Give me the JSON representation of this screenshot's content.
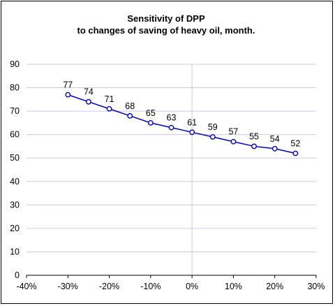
{
  "chart_data": {
    "type": "line",
    "title_line1": "Sensitivity of DPP",
    "title_line2": "to changes of saving of heavy oil, month.",
    "xlim": [
      -40,
      30
    ],
    "ylim": [
      0,
      90
    ],
    "x_ticks": [
      -40,
      -30,
      -20,
      -10,
      0,
      10,
      20,
      30
    ],
    "x_tick_labels": [
      "-40%",
      "-30%",
      "-20%",
      "-10%",
      "0%",
      "10%",
      "20%",
      "30%"
    ],
    "y_ticks": [
      0,
      10,
      20,
      30,
      40,
      50,
      60,
      70,
      80,
      90
    ],
    "y_tick_labels": [
      "0",
      "10",
      "20",
      "30",
      "40",
      "50",
      "60",
      "70",
      "80",
      "90"
    ],
    "grid": true,
    "series": [
      {
        "x": [
          -30,
          -25,
          -20,
          -15,
          -10,
          -5,
          0,
          5,
          10,
          15,
          20,
          25
        ],
        "values": [
          77,
          74,
          71,
          68,
          65,
          63,
          61,
          59,
          57,
          55,
          54,
          52
        ],
        "data_labels": [
          "77",
          "74",
          "71",
          "68",
          "65",
          "63",
          "61",
          "59",
          "57",
          "55",
          "54",
          "52"
        ],
        "color": "#0000cc"
      }
    ]
  }
}
